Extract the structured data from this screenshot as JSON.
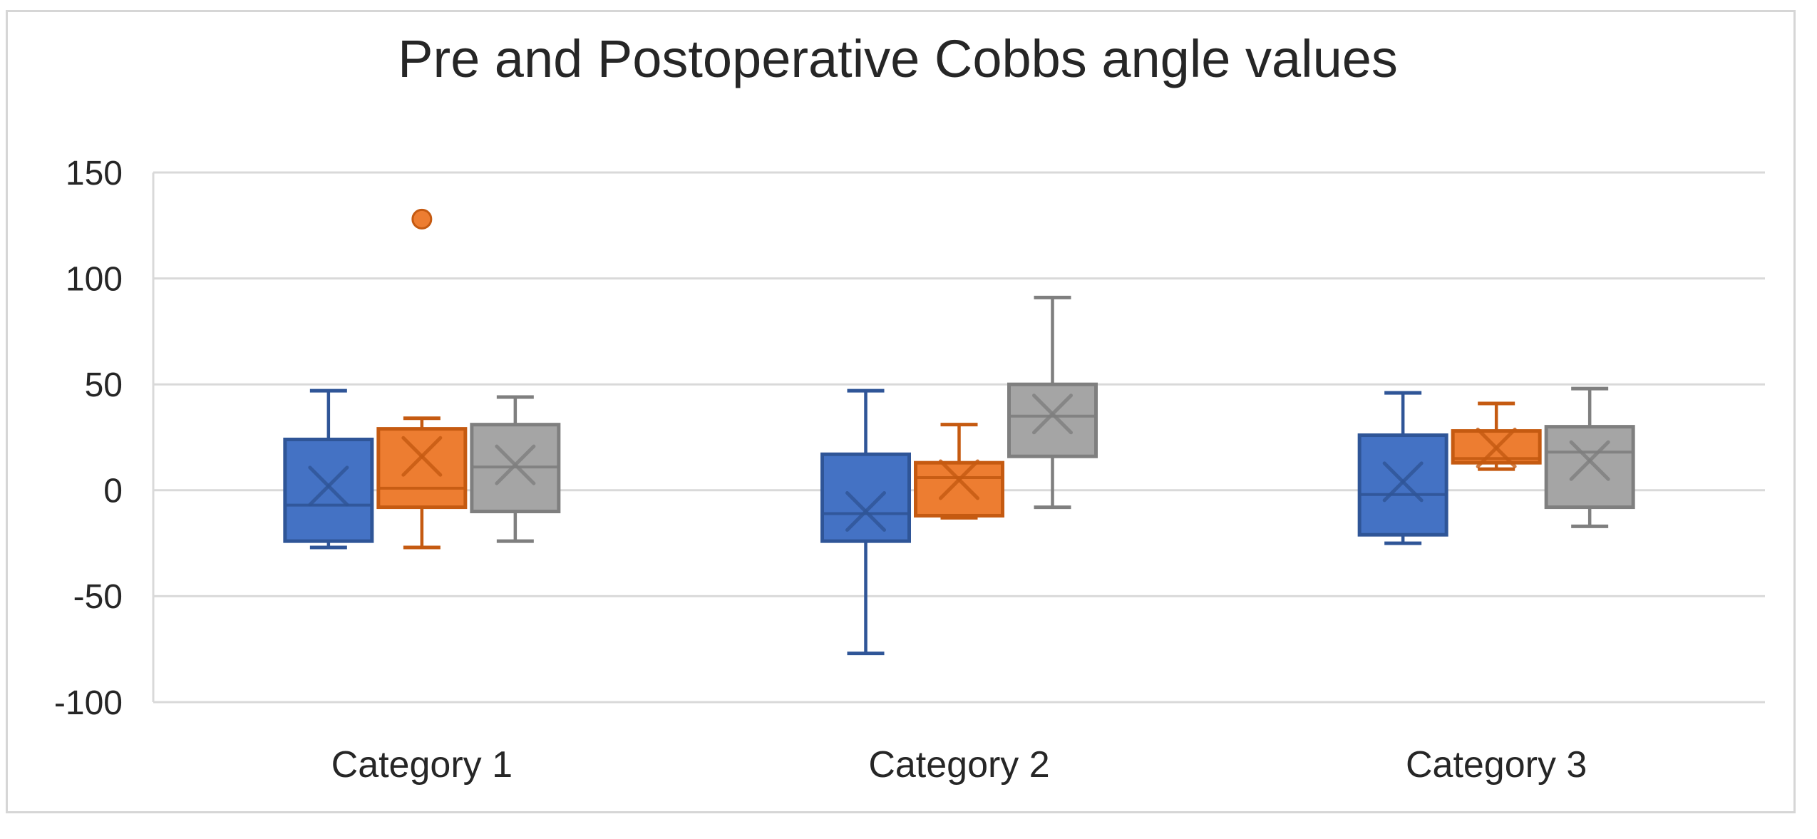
{
  "chart_data": {
    "type": "boxplot",
    "title": "Pre and Postoperative Cobbs angle values",
    "categories": [
      "Category 1",
      "Category 2",
      "Category 3"
    ],
    "legend": "none",
    "grid": true,
    "y_axis": {
      "min": -100,
      "max": 150,
      "tick_step": 50,
      "ticks": [
        150,
        100,
        50,
        0,
        -50,
        -100
      ]
    },
    "colors": {
      "gridline": "#d9d9d9",
      "axis_line": "#d9d9d9",
      "text": "#262626",
      "background": "#ffffff"
    },
    "series": [
      {
        "name": "blue-series",
        "fill": "#4472c4",
        "stroke": "#2f5597",
        "boxes": [
          {
            "category": "Category 1",
            "min": -27,
            "q1": -24,
            "median": -7,
            "q3": 24,
            "max": 47,
            "mean": 2,
            "outliers": []
          },
          {
            "category": "Category 2",
            "min": -77,
            "q1": -24,
            "median": -11,
            "q3": 17,
            "max": 47,
            "mean": -10,
            "outliers": []
          },
          {
            "category": "Category 3",
            "min": -25,
            "q1": -21,
            "median": -2,
            "q3": 26,
            "max": 46,
            "mean": 4,
            "outliers": []
          }
        ]
      },
      {
        "name": "orange-series",
        "fill": "#ed7d31",
        "stroke": "#c55a11",
        "boxes": [
          {
            "category": "Category 1",
            "min": -27,
            "q1": -8,
            "median": 1,
            "q3": 29,
            "max": 34,
            "mean": 16,
            "outliers": [
              128
            ]
          },
          {
            "category": "Category 2",
            "min": -13,
            "q1": -12,
            "median": 6,
            "q3": 13,
            "max": 31,
            "mean": 5,
            "outliers": []
          },
          {
            "category": "Category 3",
            "min": 10,
            "q1": 13,
            "median": 15,
            "q3": 28,
            "max": 41,
            "mean": 20,
            "outliers": []
          }
        ]
      },
      {
        "name": "gray-series",
        "fill": "#a5a5a5",
        "stroke": "#7f7f7f",
        "boxes": [
          {
            "category": "Category 1",
            "min": -24,
            "q1": -10,
            "median": 11,
            "q3": 31,
            "max": 44,
            "mean": 12,
            "outliers": []
          },
          {
            "category": "Category 2",
            "min": -8,
            "q1": 16,
            "median": 35,
            "q3": 50,
            "max": 91,
            "mean": 36,
            "outliers": []
          },
          {
            "category": "Category 3",
            "min": -17,
            "q1": -8,
            "median": 18,
            "q3": 30,
            "max": 48,
            "mean": 14,
            "outliers": []
          }
        ]
      }
    ]
  }
}
